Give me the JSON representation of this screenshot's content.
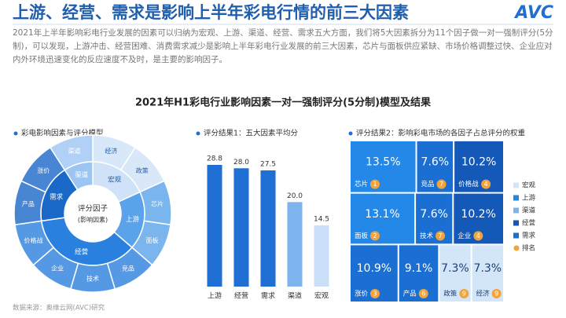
{
  "header": {
    "title": "上游、经营、需求是影响上半年彩电行情的前三大因素",
    "logo": "AVC",
    "intro": "2021年上半年影响彩电行业发展的因素可以归纳为宏观、上游、渠道、经营、需求五大方面，我们将5大因素拆分为11个因子做一对一强制评分(5分制)，可以发现，上游冲击、经营困难、消费需求减少是影响上半年彩电行业发展的前三大因素，芯片与面板供应紧缺、市场价格调整过快、企业应对内外环境迅速变化的反应速度不及时，是主要的影响因子。",
    "subtitle": "2021年H1彩电行业影响因素一对一强制评分(5分制)模型及结果"
  },
  "sunburst": {
    "heading": "彩电影响因素与评分模型",
    "center": [
      "评分因子",
      "(影响因素)"
    ],
    "groups": [
      {
        "name": "宏观",
        "color": "#cfe2f7",
        "children": [
          "经济",
          "政策"
        ]
      },
      {
        "name": "上游",
        "color": "#5aa2ea",
        "children": [
          "芯片",
          "面板"
        ]
      },
      {
        "name": "经营",
        "color": "#2a80de",
        "children": [
          "竞品",
          "技术",
          "企业",
          "价格战"
        ]
      },
      {
        "name": "需求",
        "color": "#1a68c8",
        "children": [
          "产品",
          "涨价"
        ]
      },
      {
        "name": "渠道",
        "color": "#9cc5f2",
        "children": [
          "渠道"
        ]
      }
    ]
  },
  "chart_data": {
    "type": "bar",
    "title": "评分结果1：五大因素平均分",
    "categories": [
      "上游",
      "经营",
      "需求",
      "渠道",
      "宏观"
    ],
    "values": [
      28.8,
      28.0,
      27.5,
      20.0,
      14.5
    ],
    "value_labels": [
      "28.8",
      "28.0",
      "27.5",
      "20.0",
      "14.5"
    ],
    "colors": [
      "#1f6fd4",
      "#1f6fd4",
      "#1f6fd4",
      "#7db4ee",
      "#c9e0f8"
    ]
  },
  "treemap": {
    "heading": "评分结果2：影响彩电市场的各因子占总评分的权重",
    "items": [
      {
        "name": "芯片",
        "value": 13.5,
        "label": "13.5%",
        "rank": 1,
        "color": "#2388e8"
      },
      {
        "name": "竞品",
        "value": 7.6,
        "label": "7.6%",
        "rank": 7,
        "color": "#1c6fd2"
      },
      {
        "name": "价格战",
        "value": 10.2,
        "label": "10.2%",
        "rank": 4,
        "color": "#1458b8"
      },
      {
        "name": "面板",
        "value": 13.1,
        "label": "13.1%",
        "rank": 2,
        "color": "#2388e8"
      },
      {
        "name": "技术",
        "value": 7.6,
        "label": "7.6%",
        "rank": 7,
        "color": "#1c6fd2"
      },
      {
        "name": "企业",
        "value": 10.2,
        "label": "10.2%",
        "rank": 4,
        "color": "#1458b8"
      },
      {
        "name": "涨价",
        "value": 10.9,
        "label": "10.9%",
        "rank": 3,
        "color": "#1c6fd2"
      },
      {
        "name": "产品",
        "value": 9.1,
        "label": "9.1%",
        "rank": 6,
        "color": "#1c6fd2"
      },
      {
        "name": "政策",
        "value": 7.3,
        "label": "7.3%",
        "rank": 9,
        "color": "#d3e5f8"
      },
      {
        "name": "经济",
        "value": 7.3,
        "label": "7.3%",
        "rank": 9,
        "color": "#d3e5f8"
      }
    ],
    "legend": [
      {
        "name": "宏观",
        "color": "#d3e5f8"
      },
      {
        "name": "上游",
        "color": "#2388e8"
      },
      {
        "name": "渠道",
        "color": "#7db4ee"
      },
      {
        "name": "经营",
        "color": "#1458b8"
      },
      {
        "name": "需求",
        "color": "#1c6fd2"
      },
      {
        "name": "排名",
        "color": "#f2a33a"
      }
    ]
  },
  "footer": "数据来源：奥维云网(AVC)研究"
}
